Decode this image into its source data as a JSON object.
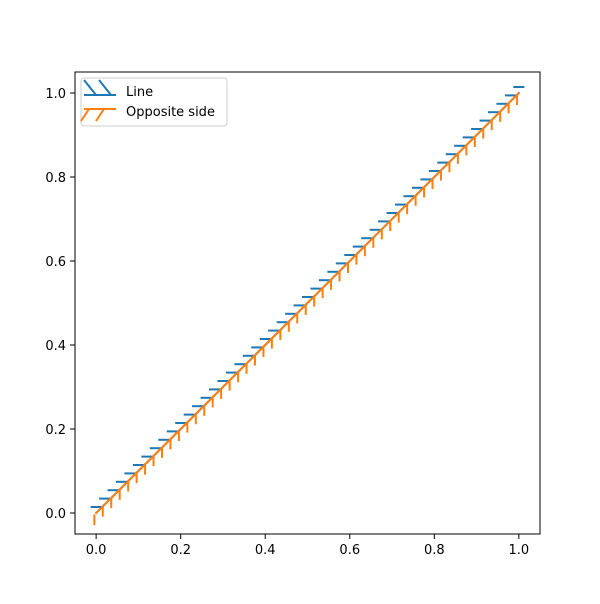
{
  "chart_data": {
    "type": "line",
    "title": "",
    "xlabel": "",
    "ylabel": "",
    "xlim": [
      -0.05,
      1.05
    ],
    "ylim": [
      -0.05,
      1.05
    ],
    "xticks": [
      0.0,
      0.2,
      0.4,
      0.6,
      0.8,
      1.0
    ],
    "yticks": [
      0.0,
      0.2,
      0.4,
      0.6,
      0.8,
      1.0
    ],
    "xtick_labels": [
      "0.0",
      "0.2",
      "0.4",
      "0.6",
      "0.8",
      "1.0"
    ],
    "ytick_labels": [
      "0.0",
      "0.2",
      "0.4",
      "0.6",
      "0.8",
      "1.0"
    ],
    "grid": false,
    "legend_position": "upper-left",
    "series": [
      {
        "name": "Line",
        "x": [
          0,
          1
        ],
        "y": [
          0,
          1
        ],
        "color": "#1f77b4",
        "marker": "horizontal-tick-path-effect"
      },
      {
        "name": "Opposite side",
        "x": [
          0,
          1
        ],
        "y": [
          0,
          1
        ],
        "color": "#ff7f0e",
        "marker": "vertical-tick-path-effect"
      }
    ]
  }
}
